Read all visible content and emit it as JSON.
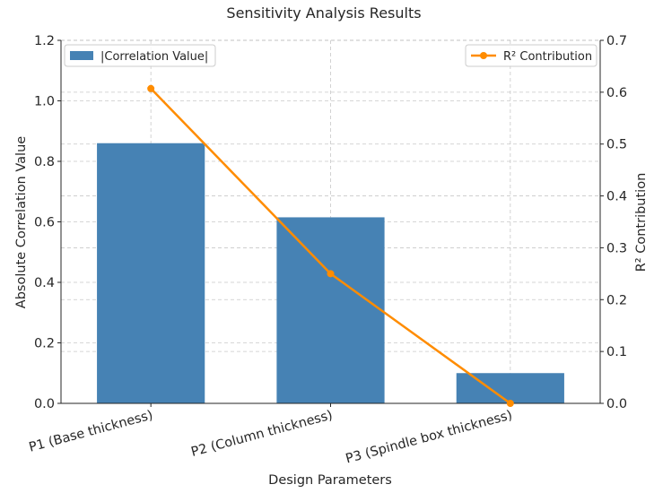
{
  "chart_data": {
    "type": "bar+line",
    "title": "Sensitivity Analysis Results",
    "xlabel": "Design Parameters",
    "ylabel_left": "Absolute Correlation Value",
    "ylabel_right": "R² Contribution",
    "categories": [
      "P1 (Base thickness)",
      "P2 (Column thickness)",
      "P3 (Spindle box thickness)"
    ],
    "series": [
      {
        "name": "|Correlation Value|",
        "type": "bar",
        "axis": "left",
        "values": [
          0.86,
          0.615,
          0.1
        ],
        "color": "#4682b4"
      },
      {
        "name": "R² Contribution",
        "type": "line",
        "axis": "right",
        "values": [
          0.607,
          0.25,
          0.0
        ],
        "color": "#ff8c00"
      }
    ],
    "ylim_left": [
      0,
      1.2
    ],
    "ylim_right": [
      0,
      0.7
    ],
    "yticks_left": [
      "0.0",
      "0.2",
      "0.4",
      "0.6",
      "0.8",
      "1.0",
      "1.2"
    ],
    "yticks_right": [
      "0.0",
      "0.1",
      "0.2",
      "0.3",
      "0.4",
      "0.5",
      "0.6",
      "0.7"
    ],
    "grid": true,
    "legend_left": {
      "label": "|Correlation Value|",
      "placement": "top-left"
    },
    "legend_right": {
      "label": "R² Contribution",
      "placement": "top-right"
    }
  }
}
